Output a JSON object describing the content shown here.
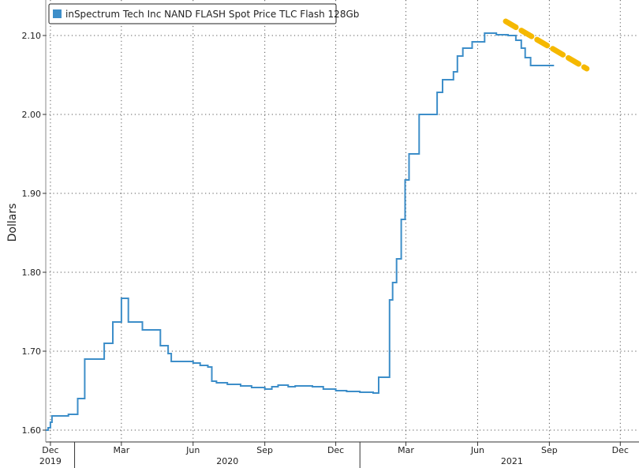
{
  "chart_data": {
    "type": "line",
    "title": "",
    "ylabel": "Dollars",
    "xlabel": "",
    "ylim": [
      1.585,
      2.145
    ],
    "xlim": [
      "2019-11-25",
      "2021-12-25"
    ],
    "yticks": [
      1.6,
      1.7,
      1.8,
      1.9,
      2.0,
      2.1
    ],
    "ytick_labels": [
      "1.60",
      "1.70",
      "1.80",
      "1.90",
      "2.00",
      "2.10"
    ],
    "xticks": [
      {
        "date": "2019-12-01",
        "label": "Dec"
      },
      {
        "date": "2020-03-01",
        "label": "Mar"
      },
      {
        "date": "2020-06-01",
        "label": "Jun"
      },
      {
        "date": "2020-09-01",
        "label": "Sep"
      },
      {
        "date": "2020-12-01",
        "label": "Dec"
      },
      {
        "date": "2021-03-01",
        "label": "Mar"
      },
      {
        "date": "2021-06-01",
        "label": "Jun"
      },
      {
        "date": "2021-09-01",
        "label": "Sep"
      },
      {
        "date": "2021-12-01",
        "label": "Dec"
      }
    ],
    "year_labels": [
      {
        "date": "2019-12-01",
        "label": "2019"
      },
      {
        "date": "2020-07-15",
        "label": "2020"
      },
      {
        "date": "2021-07-15",
        "label": "2021"
      }
    ],
    "grid": true,
    "legend_position": "top-left",
    "series": [
      {
        "name": "inSpectrum Tech Inc NAND FLASH Spot Price TLC Flash 128Gb",
        "color": "#3d8ec9",
        "style": "step",
        "points": [
          [
            "2019-11-25",
            1.6
          ],
          [
            "2019-11-28",
            1.603
          ],
          [
            "2019-12-01",
            1.61
          ],
          [
            "2019-12-03",
            1.618
          ],
          [
            "2019-12-24",
            1.62
          ],
          [
            "2020-01-05",
            1.64
          ],
          [
            "2020-01-14",
            1.69
          ],
          [
            "2020-02-08",
            1.71
          ],
          [
            "2020-02-19",
            1.737
          ],
          [
            "2020-03-01",
            1.767
          ],
          [
            "2020-03-10",
            1.737
          ],
          [
            "2020-03-28",
            1.727
          ],
          [
            "2020-04-20",
            1.707
          ],
          [
            "2020-04-30",
            1.697
          ],
          [
            "2020-05-04",
            1.687
          ],
          [
            "2020-06-01",
            1.685
          ],
          [
            "2020-06-10",
            1.682
          ],
          [
            "2020-06-20",
            1.68
          ],
          [
            "2020-06-25",
            1.662
          ],
          [
            "2020-07-01",
            1.66
          ],
          [
            "2020-07-15",
            1.658
          ],
          [
            "2020-08-01",
            1.656
          ],
          [
            "2020-08-15",
            1.654
          ],
          [
            "2020-09-01",
            1.652
          ],
          [
            "2020-09-10",
            1.655
          ],
          [
            "2020-09-18",
            1.657
          ],
          [
            "2020-10-01",
            1.655
          ],
          [
            "2020-10-10",
            1.656
          ],
          [
            "2020-11-01",
            1.655
          ],
          [
            "2020-11-15",
            1.652
          ],
          [
            "2020-12-01",
            1.65
          ],
          [
            "2020-12-15",
            1.649
          ],
          [
            "2021-01-01",
            1.648
          ],
          [
            "2021-01-18",
            1.647
          ],
          [
            "2021-01-25",
            1.667
          ],
          [
            "2021-02-07",
            1.667
          ],
          [
            "2021-02-08",
            1.765
          ],
          [
            "2021-02-12",
            1.787
          ],
          [
            "2021-02-17",
            1.817
          ],
          [
            "2021-02-23",
            1.867
          ],
          [
            "2021-02-28",
            1.917
          ],
          [
            "2021-03-05",
            1.95
          ],
          [
            "2021-03-18",
            2.0
          ],
          [
            "2021-04-10",
            2.028
          ],
          [
            "2021-04-17",
            2.044
          ],
          [
            "2021-05-01",
            2.054
          ],
          [
            "2021-05-06",
            2.074
          ],
          [
            "2021-05-13",
            2.084
          ],
          [
            "2021-05-25",
            2.092
          ],
          [
            "2021-06-10",
            2.103
          ],
          [
            "2021-06-25",
            2.101
          ],
          [
            "2021-07-10",
            2.1
          ],
          [
            "2021-07-20",
            2.094
          ],
          [
            "2021-07-27",
            2.084
          ],
          [
            "2021-08-01",
            2.072
          ],
          [
            "2021-08-08",
            2.062
          ],
          [
            "2021-08-15",
            2.062
          ],
          [
            "2021-09-07",
            2.062
          ]
        ]
      }
    ],
    "annotations": [
      {
        "type": "dashed-trend-arrow",
        "color": "#f5b800",
        "from": [
          "2021-07-07",
          2.118
        ],
        "to": [
          "2021-10-19",
          2.058
        ]
      }
    ]
  }
}
